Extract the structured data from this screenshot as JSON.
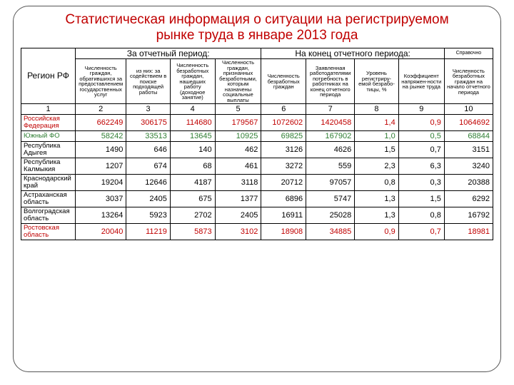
{
  "title": "Статистическая информация о ситуации на регистрируемом рынке труда в январе 2013 года",
  "title_color": "#c00000",
  "title_fontsize": 19,
  "header": {
    "region_label": "Регион РФ",
    "group1": "За отчетный период:",
    "group2": "На конец отчетного периода:",
    "group3": "Справочно",
    "sub": [
      "Численность граждан, обратившихся за предоставлением государственных услуг",
      "из них:  за содействием в поиске подходящей работы",
      "Численность безработных граждан, нашедших работу (доходное занятие)",
      "Численность граждан, признанных безработными, которым назначены социальные выплаты",
      "Численность безработных граждан",
      "Заявленная работодателями потребность в работниках на конец отчетного периода",
      "Уровень регистриру-емой безрабо-тицы, %",
      "Коэффициент напряжен-ности на рынке труда",
      "Численность безработных граждан на начало отчетного периода"
    ],
    "nums": [
      "1",
      "2",
      "3",
      "4",
      "5",
      "6",
      "7",
      "8",
      "9",
      "10"
    ]
  },
  "col_widths_pct": [
    11.5,
    10.8,
    9.3,
    9.5,
    9.8,
    9.5,
    10.3,
    9.3,
    9.7,
    10.3
  ],
  "header_fontsize": 12,
  "subhead_fontsize": 7.5,
  "body_fontsize": 11,
  "region_fontsize": 9.5,
  "row_colors": {
    "rf": "#c00000",
    "yufo": "#2e7d32",
    "rostov": "#c00000",
    "default": "#000000"
  },
  "rows": [
    {
      "key": "rf",
      "region": "Российская Федерация",
      "vals": [
        "662249",
        "306175",
        "114680",
        "179567",
        "1072602",
        "1420458",
        "1,4",
        "0,9",
        "1064692"
      ]
    },
    {
      "key": "yufo",
      "region": "Южный ФО",
      "vals": [
        "58242",
        "33513",
        "13645",
        "10925",
        "69825",
        "167902",
        "1,0",
        "0,5",
        "68844"
      ]
    },
    {
      "key": "",
      "region": "Республика Адыгея",
      "vals": [
        "1490",
        "646",
        "140",
        "462",
        "3126",
        "4626",
        "1,5",
        "0,7",
        "3151"
      ]
    },
    {
      "key": "",
      "region": "Республика Калмыкия",
      "vals": [
        "1207",
        "674",
        "68",
        "461",
        "3272",
        "559",
        "2,3",
        "6,3",
        "3240"
      ]
    },
    {
      "key": "",
      "region": "Краснодарский край",
      "vals": [
        "19204",
        "12646",
        "4187",
        "3118",
        "20712",
        "97057",
        "0,8",
        "0,3",
        "20388"
      ]
    },
    {
      "key": "",
      "region": "Астраханская область",
      "vals": [
        "3037",
        "2405",
        "675",
        "1377",
        "6896",
        "5747",
        "1,3",
        "1,5",
        "6292"
      ]
    },
    {
      "key": "",
      "region": "Волгоградская область",
      "vals": [
        "13264",
        "5923",
        "2702",
        "2405",
        "16911",
        "25028",
        "1,3",
        "0,8",
        "16792"
      ]
    },
    {
      "key": "rostov",
      "region": "Ростовская область",
      "vals": [
        "20040",
        "11219",
        "5873",
        "3102",
        "18908",
        "34885",
        "0,9",
        "0,7",
        "18981"
      ]
    }
  ]
}
